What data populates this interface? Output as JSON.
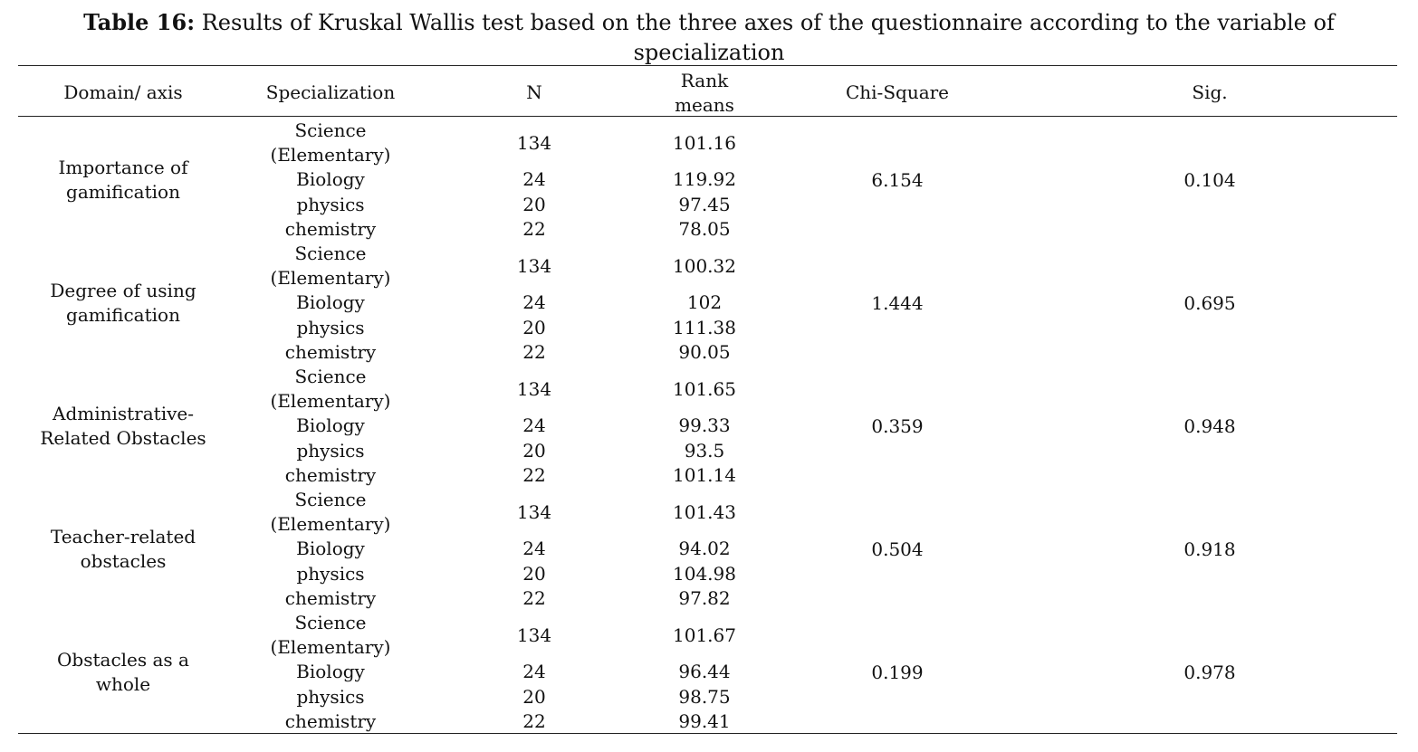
{
  "caption": {
    "label": "Table 16:",
    "text": " Results of Kruskal Wallis test based on the three axes of the questionnaire according to the variable of specialization"
  },
  "columns": {
    "domain": "Domain/ axis",
    "specialization": "Specialization",
    "n": "N",
    "rank_line1": "Rank",
    "rank_line2": "means",
    "chi": "Chi-Square",
    "sig": "Sig."
  },
  "groups": [
    {
      "domain_lines": [
        "Importance of",
        "gamification"
      ],
      "chi": "6.154",
      "sig": "0.104",
      "rows": [
        {
          "spec_lines": [
            "Science",
            "(Elementary)"
          ],
          "n": "134",
          "rank": "101.16"
        },
        {
          "spec_lines": [
            "Biology"
          ],
          "n": "24",
          "rank": "119.92"
        },
        {
          "spec_lines": [
            "physics"
          ],
          "n": "20",
          "rank": "97.45"
        },
        {
          "spec_lines": [
            "chemistry"
          ],
          "n": "22",
          "rank": "78.05"
        }
      ]
    },
    {
      "domain_lines": [
        "Degree of using",
        "gamification"
      ],
      "chi": "1.444",
      "sig": "0.695",
      "rows": [
        {
          "spec_lines": [
            "Science",
            "(Elementary)"
          ],
          "n": "134",
          "rank": "100.32"
        },
        {
          "spec_lines": [
            "Biology"
          ],
          "n": "24",
          "rank": "102"
        },
        {
          "spec_lines": [
            "physics"
          ],
          "n": "20",
          "rank": "111.38"
        },
        {
          "spec_lines": [
            "chemistry"
          ],
          "n": "22",
          "rank": "90.05"
        }
      ]
    },
    {
      "domain_lines": [
        "Administrative-",
        "Related Obstacles"
      ],
      "chi": "0.359",
      "sig": "0.948",
      "rows": [
        {
          "spec_lines": [
            "Science",
            "(Elementary)"
          ],
          "n": "134",
          "rank": "101.65"
        },
        {
          "spec_lines": [
            "Biology"
          ],
          "n": "24",
          "rank": "99.33"
        },
        {
          "spec_lines": [
            "physics"
          ],
          "n": "20",
          "rank": "93.5"
        },
        {
          "spec_lines": [
            "chemistry"
          ],
          "n": "22",
          "rank": "101.14"
        }
      ]
    },
    {
      "domain_lines": [
        "Teacher-related",
        "obstacles"
      ],
      "chi": "0.504",
      "sig": "0.918",
      "rows": [
        {
          "spec_lines": [
            "Science",
            "(Elementary)"
          ],
          "n": "134",
          "rank": "101.43"
        },
        {
          "spec_lines": [
            "Biology"
          ],
          "n": "24",
          "rank": "94.02"
        },
        {
          "spec_lines": [
            "physics"
          ],
          "n": "20",
          "rank": "104.98"
        },
        {
          "spec_lines": [
            "chemistry"
          ],
          "n": "22",
          "rank": "97.82"
        }
      ]
    },
    {
      "domain_lines": [
        "Obstacles as a",
        "whole"
      ],
      "chi": "0.199",
      "sig": "0.978",
      "rows": [
        {
          "spec_lines": [
            "Science",
            "(Elementary)"
          ],
          "n": "134",
          "rank": "101.67"
        },
        {
          "spec_lines": [
            "Biology"
          ],
          "n": "24",
          "rank": "96.44"
        },
        {
          "spec_lines": [
            "physics"
          ],
          "n": "20",
          "rank": "98.75"
        },
        {
          "spec_lines": [
            "chemistry"
          ],
          "n": "22",
          "rank": "99.41"
        }
      ]
    }
  ]
}
